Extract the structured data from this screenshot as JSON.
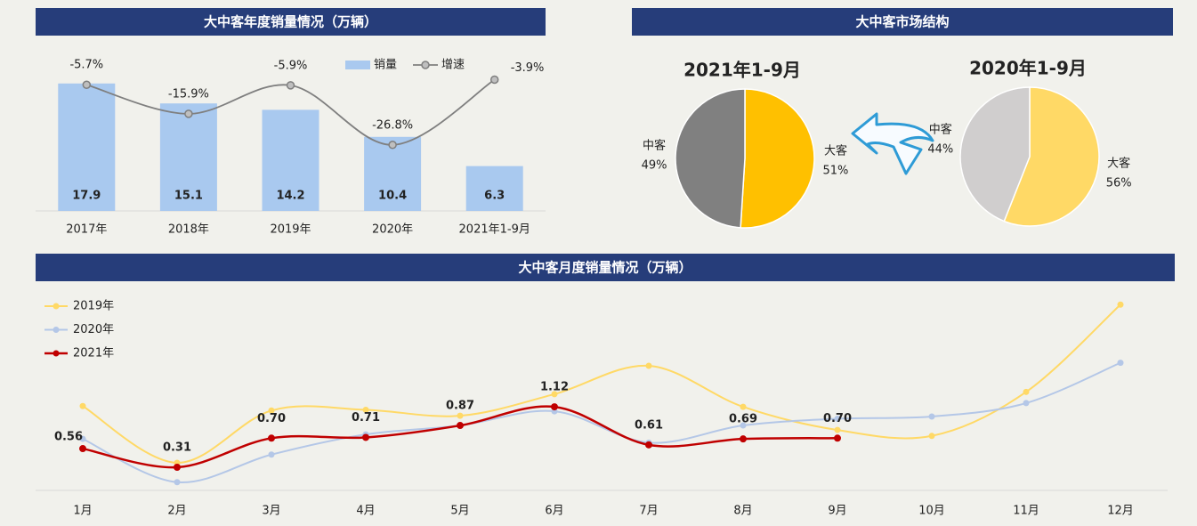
{
  "chart_data": [
    {
      "type": "bar",
      "title": "大中客年度销量情况（万辆）",
      "categories": [
        "2017年",
        "2018年",
        "2019年",
        "2020年",
        "2021年1-9月"
      ],
      "series": [
        {
          "name": "销量",
          "type": "bar",
          "color": "#a9c9ef",
          "values": [
            17.9,
            15.1,
            14.2,
            10.4,
            6.3
          ]
        },
        {
          "name": "增速",
          "type": "line",
          "axis": "y2",
          "color": "#7f7f7f",
          "values": [
            -5.7,
            -15.9,
            -5.9,
            -26.8,
            -3.9
          ],
          "value_labels": [
            "-5.7%",
            "-15.9%",
            "-5.9%",
            "-26.8%",
            "-3.9%"
          ]
        }
      ],
      "ylim": [
        0,
        22
      ],
      "y2lim": [
        -50,
        5
      ],
      "legend": "top"
    },
    {
      "type": "pie",
      "section_title": "大中客市场结构",
      "title": "2021年1-9月",
      "categories": [
        "中客",
        "大客"
      ],
      "values": [
        49,
        51
      ],
      "value_labels": [
        "49%",
        "51%"
      ],
      "colors": [
        "#808080",
        "#ffc000"
      ]
    },
    {
      "type": "pie",
      "title": "2020年1-9月",
      "categories": [
        "中客",
        "大客"
      ],
      "values": [
        44,
        56
      ],
      "value_labels": [
        "44%",
        "56%"
      ],
      "colors": [
        "#d0cece",
        "#ffd966"
      ]
    },
    {
      "type": "line",
      "title": "大中客月度销量情况（万辆）",
      "categories": [
        "1月",
        "2月",
        "3月",
        "4月",
        "5月",
        "6月",
        "7月",
        "8月",
        "9月",
        "10月",
        "11月",
        "12月"
      ],
      "series": [
        {
          "name": "2019年",
          "color": "#ffd966",
          "values": [
            1.13,
            0.37,
            1.07,
            1.08,
            1.0,
            1.29,
            1.67,
            1.12,
            0.81,
            0.73,
            1.32,
            2.49
          ]
        },
        {
          "name": "2020年",
          "color": "#b4c7e7",
          "values": [
            0.69,
            0.11,
            0.48,
            0.75,
            0.87,
            1.06,
            0.64,
            0.87,
            0.96,
            0.99,
            1.17,
            1.71
          ]
        },
        {
          "name": "2021年",
          "color": "#c00000",
          "values": [
            0.56,
            0.31,
            0.7,
            0.71,
            0.87,
            1.12,
            0.61,
            0.69,
            0.7,
            null,
            null,
            null
          ],
          "value_labels": [
            "0.56",
            "0.31",
            "0.70",
            "0.71",
            "0.87",
            "1.12",
            "0.61",
            "0.69",
            "0.70",
            null,
            null,
            null
          ]
        }
      ],
      "ylim": [
        0,
        2.6
      ],
      "legend": "top-left"
    }
  ]
}
